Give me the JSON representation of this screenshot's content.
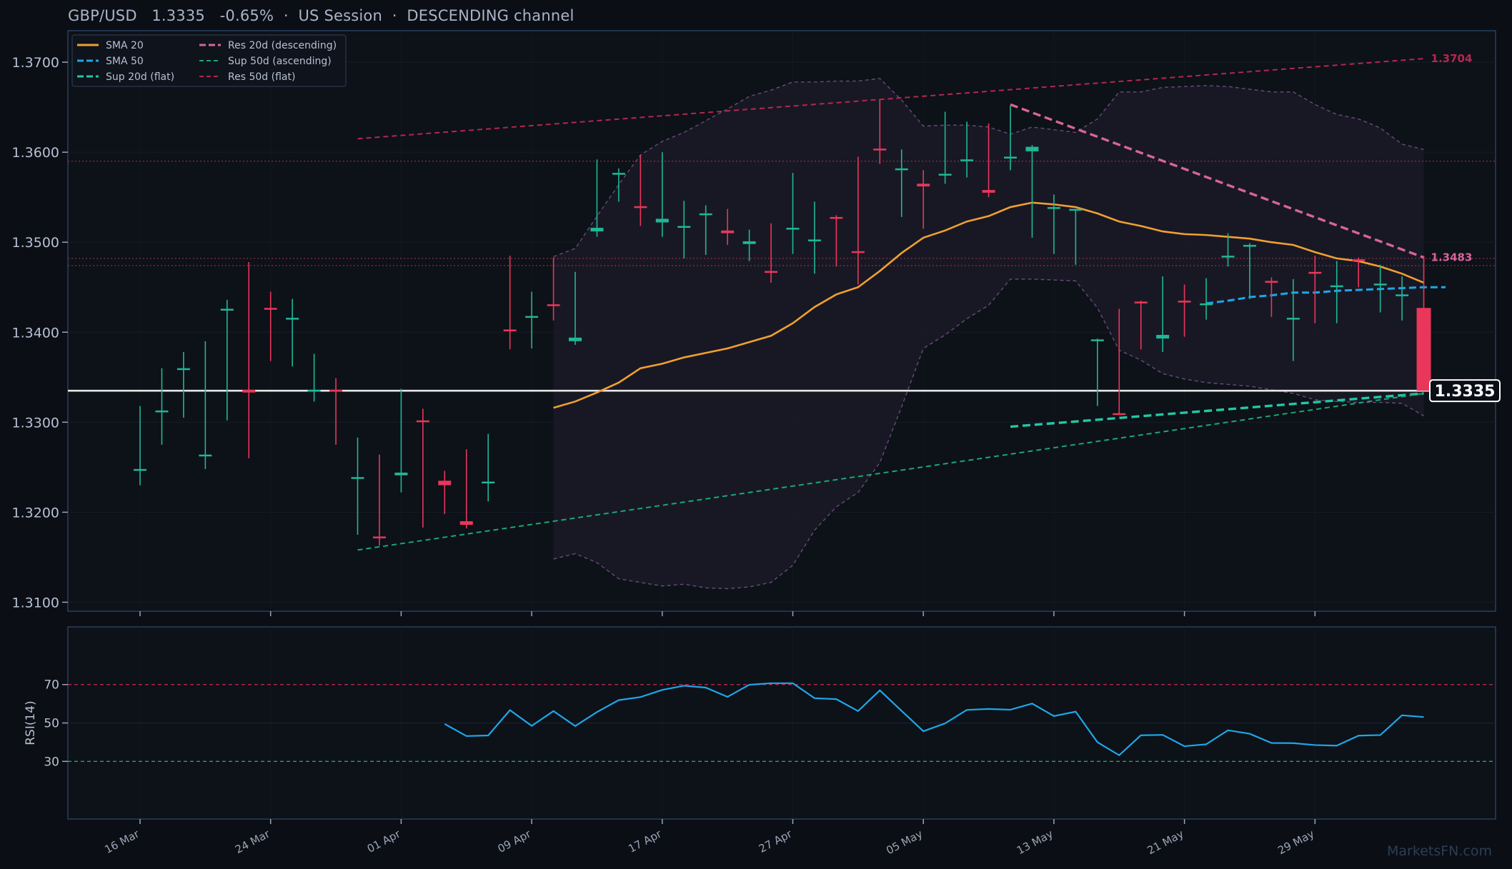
{
  "title": "GBP/USD   1.3335   -0.65%  ·  US Session  ·  DESCENDING channel",
  "watermark": "MarketsFN.com",
  "chart_data": {
    "type": "candlestick",
    "symbol": "GBP/USD",
    "last_price": 1.3335,
    "last_price_label": "1.3335",
    "change": "-0.65%",
    "session": "US Session",
    "pattern": "DESCENDING channel",
    "ylim": [
      1.309,
      1.3735
    ],
    "yticks": [
      1.31,
      1.32,
      1.33,
      1.34,
      1.35,
      1.36,
      1.37
    ],
    "ytick_labels": [
      "1.3100",
      "1.3200",
      "1.3300",
      "1.3400",
      "1.3500",
      "1.3600",
      "1.3700"
    ],
    "xticks": [
      {
        "i": 0,
        "label": "16 Mar"
      },
      {
        "i": 6,
        "label": "24 Mar"
      },
      {
        "i": 12,
        "label": "01 Apr"
      },
      {
        "i": 18,
        "label": "09 Apr"
      },
      {
        "i": 24,
        "label": "17 Apr"
      },
      {
        "i": 30,
        "label": "27 Apr"
      },
      {
        "i": 36,
        "label": "05 May"
      },
      {
        "i": 42,
        "label": "13 May"
      },
      {
        "i": 48,
        "label": "21 May"
      },
      {
        "i": 54,
        "label": "29 May"
      }
    ],
    "candles": [
      {
        "o": 1.3248,
        "h": 1.3318,
        "l": 1.323,
        "c": 1.3248
      },
      {
        "o": 1.3313,
        "h": 1.336,
        "l": 1.3275,
        "c": 1.3313
      },
      {
        "o": 1.3358,
        "h": 1.3378,
        "l": 1.3305,
        "c": 1.336
      },
      {
        "o": 1.3263,
        "h": 1.339,
        "l": 1.3248,
        "c": 1.3264
      },
      {
        "o": 1.3425,
        "h": 1.3436,
        "l": 1.3302,
        "c": 1.3426
      },
      {
        "o": 1.3336,
        "h": 1.3478,
        "l": 1.326,
        "c": 1.3333
      },
      {
        "o": 1.3427,
        "h": 1.3445,
        "l": 1.3368,
        "c": 1.3425
      },
      {
        "o": 1.3415,
        "h": 1.3437,
        "l": 1.3362,
        "c": 1.3416
      },
      {
        "o": 1.3334,
        "h": 1.3376,
        "l": 1.3323,
        "c": 1.3336
      },
      {
        "o": 1.3336,
        "h": 1.3349,
        "l": 1.3275,
        "c": 1.3335
      },
      {
        "o": 1.3238,
        "h": 1.3283,
        "l": 1.3175,
        "c": 1.3239
      },
      {
        "o": 1.3173,
        "h": 1.3264,
        "l": 1.3163,
        "c": 1.3172
      },
      {
        "o": 1.3241,
        "h": 1.3337,
        "l": 1.3222,
        "c": 1.3244
      },
      {
        "o": 1.3302,
        "h": 1.3315,
        "l": 1.3183,
        "c": 1.3301
      },
      {
        "o": 1.3235,
        "h": 1.3246,
        "l": 1.3198,
        "c": 1.323
      },
      {
        "o": 1.319,
        "h": 1.327,
        "l": 1.3182,
        "c": 1.3186
      },
      {
        "o": 1.3233,
        "h": 1.3287,
        "l": 1.3212,
        "c": 1.3234
      },
      {
        "o": 1.3403,
        "h": 1.3485,
        "l": 1.3381,
        "c": 1.3402
      },
      {
        "o": 1.3417,
        "h": 1.3445,
        "l": 1.3382,
        "c": 1.3418
      },
      {
        "o": 1.3431,
        "h": 1.3483,
        "l": 1.3413,
        "c": 1.343
      },
      {
        "o": 1.339,
        "h": 1.3467,
        "l": 1.3386,
        "c": 1.3394
      },
      {
        "o": 1.3512,
        "h": 1.3592,
        "l": 1.3506,
        "c": 1.3516
      },
      {
        "o": 1.3575,
        "h": 1.3582,
        "l": 1.3545,
        "c": 1.3577
      },
      {
        "o": 1.354,
        "h": 1.3597,
        "l": 1.3518,
        "c": 1.3539
      },
      {
        "o": 1.3522,
        "h": 1.36,
        "l": 1.3506,
        "c": 1.3526
      },
      {
        "o": 1.3516,
        "h": 1.3546,
        "l": 1.3482,
        "c": 1.3518
      },
      {
        "o": 1.3531,
        "h": 1.3541,
        "l": 1.3486,
        "c": 1.3532
      },
      {
        "o": 1.3513,
        "h": 1.3537,
        "l": 1.3497,
        "c": 1.351
      },
      {
        "o": 1.3498,
        "h": 1.3514,
        "l": 1.3479,
        "c": 1.3501
      },
      {
        "o": 1.3468,
        "h": 1.3521,
        "l": 1.3455,
        "c": 1.3466
      },
      {
        "o": 1.3515,
        "h": 1.3577,
        "l": 1.3487,
        "c": 1.3516
      },
      {
        "o": 1.3502,
        "h": 1.3545,
        "l": 1.3465,
        "c": 1.3503
      },
      {
        "o": 1.3528,
        "h": 1.353,
        "l": 1.3473,
        "c": 1.3526
      },
      {
        "o": 1.349,
        "h": 1.3595,
        "l": 1.3453,
        "c": 1.3489
      },
      {
        "o": 1.3604,
        "h": 1.3659,
        "l": 1.3587,
        "c": 1.3603
      },
      {
        "o": 1.358,
        "h": 1.3603,
        "l": 1.3528,
        "c": 1.3582
      },
      {
        "o": 1.3565,
        "h": 1.358,
        "l": 1.3515,
        "c": 1.3562
      },
      {
        "o": 1.3575,
        "h": 1.3645,
        "l": 1.3565,
        "c": 1.3576
      },
      {
        "o": 1.359,
        "h": 1.3634,
        "l": 1.3572,
        "c": 1.3592
      },
      {
        "o": 1.3558,
        "h": 1.3632,
        "l": 1.355,
        "c": 1.3555
      },
      {
        "o": 1.3593,
        "h": 1.3652,
        "l": 1.358,
        "c": 1.3595
      },
      {
        "o": 1.3601,
        "h": 1.3608,
        "l": 1.3505,
        "c": 1.3606
      },
      {
        "o": 1.3537,
        "h": 1.3553,
        "l": 1.3487,
        "c": 1.3539
      },
      {
        "o": 1.3536,
        "h": 1.3536,
        "l": 1.3475,
        "c": 1.3537
      },
      {
        "o": 1.3391,
        "h": 1.3393,
        "l": 1.3318,
        "c": 1.3392
      },
      {
        "o": 1.331,
        "h": 1.3426,
        "l": 1.3309,
        "c": 1.3308
      },
      {
        "o": 1.3434,
        "h": 1.3435,
        "l": 1.3381,
        "c": 1.3433
      },
      {
        "o": 1.3393,
        "h": 1.3462,
        "l": 1.3378,
        "c": 1.3397
      },
      {
        "o": 1.3435,
        "h": 1.3453,
        "l": 1.3395,
        "c": 1.3434
      },
      {
        "o": 1.343,
        "h": 1.346,
        "l": 1.3414,
        "c": 1.3432
      },
      {
        "o": 1.3484,
        "h": 1.351,
        "l": 1.3473,
        "c": 1.3485
      },
      {
        "o": 1.3496,
        "h": 1.3499,
        "l": 1.3437,
        "c": 1.3497
      },
      {
        "o": 1.3457,
        "h": 1.3461,
        "l": 1.3417,
        "c": 1.3455
      },
      {
        "o": 1.3415,
        "h": 1.3459,
        "l": 1.3368,
        "c": 1.3416
      },
      {
        "o": 1.3467,
        "h": 1.3485,
        "l": 1.341,
        "c": 1.3465
      },
      {
        "o": 1.3451,
        "h": 1.3479,
        "l": 1.341,
        "c": 1.3452
      },
      {
        "o": 1.3481,
        "h": 1.3483,
        "l": 1.345,
        "c": 1.3479
      },
      {
        "o": 1.3453,
        "h": 1.3475,
        "l": 1.3422,
        "c": 1.3454
      },
      {
        "o": 1.3441,
        "h": 1.3462,
        "l": 1.3413,
        "c": 1.3442
      },
      {
        "o": 1.3427,
        "h": 1.3485,
        "l": 1.3335,
        "c": 1.3335
      }
    ],
    "sma20": {
      "start": 19,
      "values": [
        1.3316,
        1.3323,
        1.3333,
        1.3344,
        1.336,
        1.3365,
        1.3372,
        1.3377,
        1.3382,
        1.3389,
        1.3396,
        1.341,
        1.3428,
        1.3442,
        1.345,
        1.3468,
        1.3488,
        1.3505,
        1.3513,
        1.3523,
        1.3529,
        1.3539,
        1.3544,
        1.3542,
        1.3539,
        1.3532,
        1.3523,
        1.3518,
        1.3512,
        1.3509,
        1.3508,
        1.3506,
        1.3504,
        1.35,
        1.3497,
        1.3489,
        1.3482,
        1.3479,
        1.3473,
        1.3465,
        1.3455
      ]
    },
    "sma50": {
      "start": 49,
      "values": [
        1.3432,
        1.3435,
        1.3439,
        1.3441,
        1.3444,
        1.3444,
        1.3446,
        1.3447,
        1.3448,
        1.3449,
        1.345,
        1.345
      ]
    },
    "bollinger_upper": {
      "start": 19,
      "values": [
        1.3484,
        1.3493,
        1.3529,
        1.3564,
        1.3597,
        1.3612,
        1.3622,
        1.3635,
        1.3648,
        1.3662,
        1.3669,
        1.3678,
        1.3678,
        1.3679,
        1.3679,
        1.3682,
        1.3658,
        1.3629,
        1.363,
        1.363,
        1.3628,
        1.362,
        1.3628,
        1.3625,
        1.3622,
        1.3637,
        1.3667,
        1.3667,
        1.3672,
        1.3673,
        1.3674,
        1.3673,
        1.367,
        1.3667,
        1.3667,
        1.3653,
        1.3642,
        1.3637,
        1.3627,
        1.3609,
        1.3603
      ]
    },
    "bollinger_lower": {
      "start": 19,
      "values": [
        1.3148,
        1.3154,
        1.3144,
        1.3126,
        1.3122,
        1.3118,
        1.312,
        1.3116,
        1.3115,
        1.3117,
        1.3122,
        1.3141,
        1.318,
        1.3206,
        1.3222,
        1.3255,
        1.3317,
        1.3382,
        1.3397,
        1.3415,
        1.343,
        1.3459,
        1.3459,
        1.3458,
        1.3457,
        1.3427,
        1.338,
        1.3369,
        1.3354,
        1.3348,
        1.3344,
        1.3342,
        1.334,
        1.3336,
        1.3332,
        1.3325,
        1.3323,
        1.3322,
        1.3322,
        1.3321,
        1.3307
      ]
    },
    "levels": [
      {
        "name": "Res 20d (descending)",
        "style": "dashed-bold",
        "color": "#d9649a",
        "from": [
          40,
          1.3653
        ],
        "to": [
          59,
          1.3483
        ],
        "price_label": "1.3483"
      },
      {
        "name": "Sup 20d (flat)",
        "style": "dashed-bold",
        "color": "#23c7a3",
        "from": [
          40,
          1.3295
        ],
        "to": [
          59,
          1.3332
        ]
      },
      {
        "name": "Res 50d (flat)",
        "style": "dashed",
        "color": "#b5274f",
        "from": [
          10,
          1.3615
        ],
        "to": [
          59,
          1.3704
        ],
        "price_label": "1.3704"
      },
      {
        "name": "Sup 50d (ascending)",
        "style": "dashed",
        "color": "#1aa874",
        "from": [
          10,
          1.3158
        ],
        "to": [
          59,
          1.3332
        ]
      }
    ],
    "horizontal_dotted": [
      1.359,
      1.3482,
      1.3474
    ],
    "legend": [
      {
        "name": "SMA 20",
        "color": "#f0a030",
        "style": "solid"
      },
      {
        "name": "SMA 50",
        "color": "#1ea7e8",
        "style": "dashed-bold"
      },
      {
        "name": "Sup 20d (flat)",
        "color": "#23c7a3",
        "style": "dashed-bold"
      },
      {
        "name": "Res 20d (descending)",
        "color": "#d9649a",
        "style": "dashed-bold"
      },
      {
        "name": "Sup 50d (ascending)",
        "color": "#1aa874",
        "style": "dashed"
      },
      {
        "name": "Res 50d (flat)",
        "color": "#b5274f",
        "style": "dashed"
      }
    ],
    "legend_position": "top-left",
    "rsi": {
      "ylabel": "RSI(14)",
      "ylim": [
        0,
        100
      ],
      "yticks": [
        30,
        50,
        70
      ],
      "ytick_labels": [
        "30",
        "50",
        "70"
      ],
      "start": 14,
      "values": [
        49.5,
        43.2,
        43.5,
        56.7,
        48.5,
        56.2,
        48.4,
        55.7,
        61.9,
        63.5,
        67.2,
        69.4,
        68.4,
        63.6,
        69.9,
        70.7,
        70.7,
        62.9,
        62.4,
        56.2,
        67.0,
        56.3,
        45.7,
        49.8,
        56.8,
        57.3,
        56.9,
        60.1,
        53.6,
        55.9,
        40.0,
        33.2,
        43.6,
        43.8,
        37.9,
        38.9,
        46.2,
        44.4,
        39.6,
        39.5,
        38.5,
        38.2,
        43.4,
        43.7,
        54.0,
        53.1
      ]
    },
    "colors": {
      "up": "#1fb797",
      "down": "#e8375a",
      "price_line": "#e6e6e6",
      "rsi_line": "#1ea7e8",
      "overbought": "#b5274f",
      "oversold": "#1aa874",
      "band": "#7a5a90"
    }
  }
}
